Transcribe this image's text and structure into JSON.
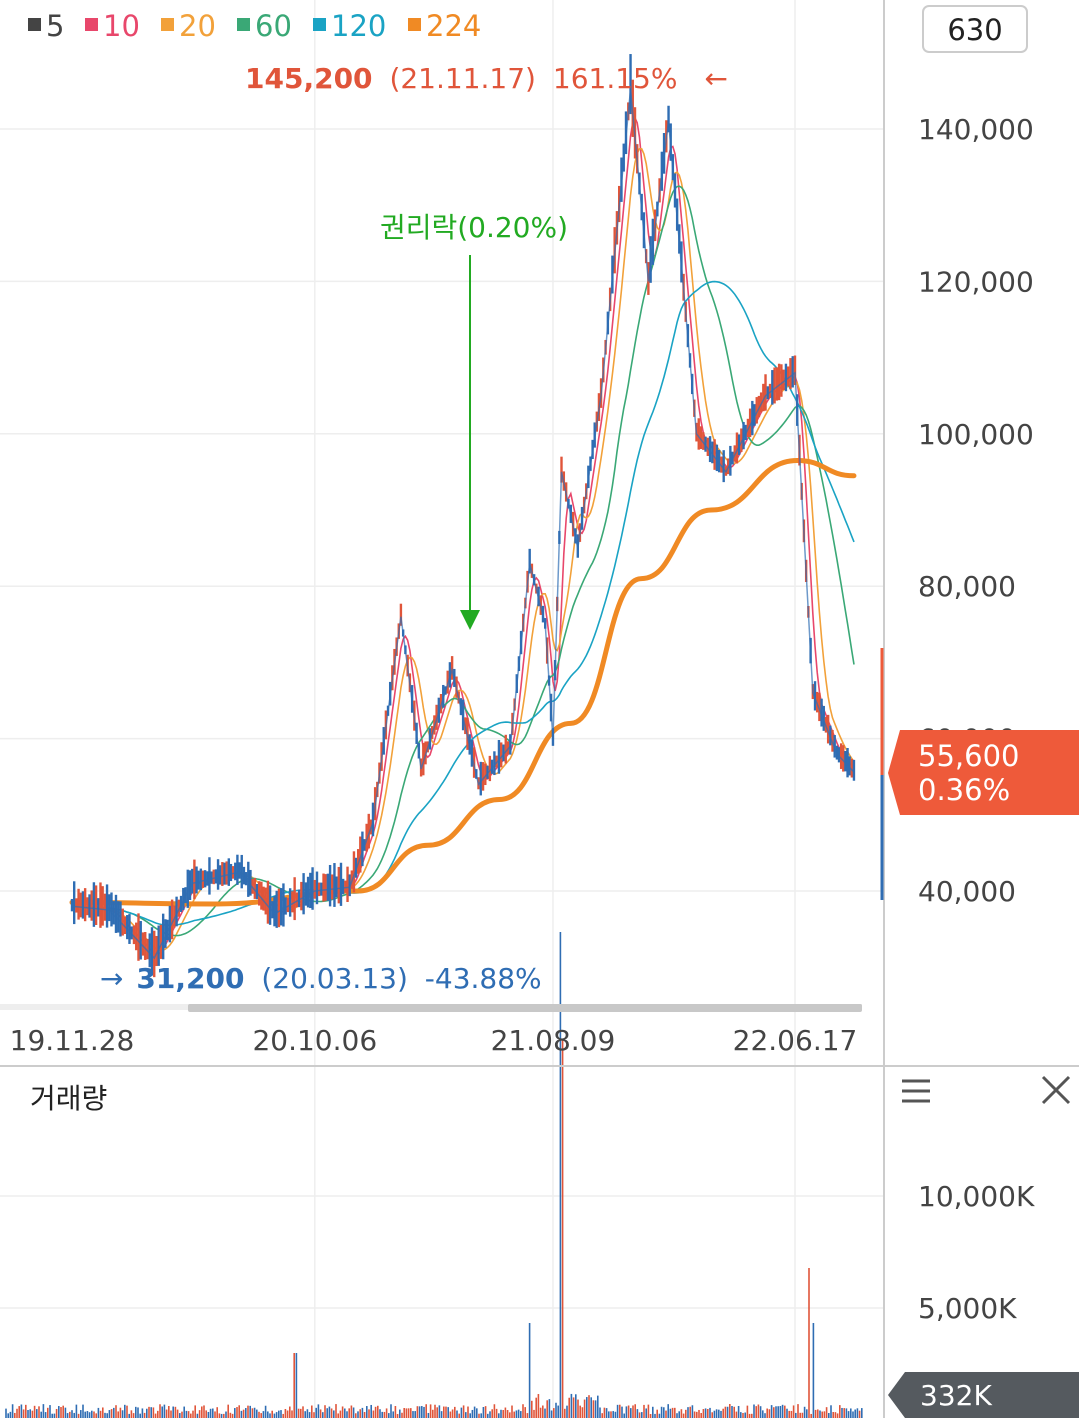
{
  "legend": [
    {
      "label": "5",
      "color": "#444444"
    },
    {
      "label": "10",
      "color": "#e8476b"
    },
    {
      "label": "20",
      "color": "#f2a13a"
    },
    {
      "label": "60",
      "color": "#3aa876"
    },
    {
      "label": "120",
      "color": "#1aa3c4"
    },
    {
      "label": "224",
      "color": "#f08a24"
    }
  ],
  "period_box": "630",
  "price_axis_labels": [
    "140,000",
    "120,000",
    "100,000",
    "80,000",
    "60,000",
    "40,000"
  ],
  "date_labels": [
    "19.11.28",
    "20.10.06",
    "21.08.09",
    "22.06.17"
  ],
  "high_annotation": {
    "price": "145,200",
    "date": "(21.11.17)",
    "pct": "161.15%",
    "arrow": "←",
    "color": "#e0553a"
  },
  "low_annotation": {
    "arrow": "→",
    "price": "31,200",
    "date": "(20.03.13)",
    "pct": "-43.88%",
    "color": "#2f6db3"
  },
  "event_annotation": {
    "label": "권리락(0.20%)",
    "color": "#22aa22"
  },
  "current_badge": {
    "price": "55,600",
    "pct": "0.36%",
    "color": "#ee5a3a"
  },
  "volume_panel": {
    "title": "거래량",
    "axis_labels": [
      "10,000K",
      "5,000K"
    ],
    "current_badge": "332K",
    "menu_icon": "menu-icon",
    "close_icon": "close-icon"
  },
  "chart_data": {
    "type": "line",
    "y_axis": {
      "min": 26000,
      "max": 150000,
      "unit": "KRW"
    },
    "series": [
      {
        "name": "price",
        "points": [
          {
            "date": "2019-11-28",
            "close": 38000
          },
          {
            "date": "2020-01-15",
            "close": 37500
          },
          {
            "date": "2020-03-13",
            "close": 31200
          },
          {
            "date": "2020-05-01",
            "close": 41000
          },
          {
            "date": "2020-07-01",
            "close": 42500
          },
          {
            "date": "2020-08-15",
            "close": 37000
          },
          {
            "date": "2020-10-06",
            "close": 40000
          },
          {
            "date": "2020-11-20",
            "close": 40500
          },
          {
            "date": "2020-12-20",
            "close": 49000
          },
          {
            "date": "2021-01-25",
            "close": 76000
          },
          {
            "date": "2021-02-20",
            "close": 56000
          },
          {
            "date": "2021-04-01",
            "close": 69000
          },
          {
            "date": "2021-05-05",
            "close": 54000
          },
          {
            "date": "2021-06-15",
            "close": 59000
          },
          {
            "date": "2021-07-10",
            "close": 83000
          },
          {
            "date": "2021-07-30",
            "close": 75000
          },
          {
            "date": "2021-08-09",
            "close": 60000
          },
          {
            "date": "2021-08-20",
            "close": 95000
          },
          {
            "date": "2021-09-10",
            "close": 85000
          },
          {
            "date": "2021-10-10",
            "close": 105000
          },
          {
            "date": "2021-11-17",
            "close": 145200
          },
          {
            "date": "2021-12-10",
            "close": 120000
          },
          {
            "date": "2022-01-05",
            "close": 141000
          },
          {
            "date": "2022-02-10",
            "close": 100000
          },
          {
            "date": "2022-03-20",
            "close": 95000
          },
          {
            "date": "2022-05-10",
            "close": 105000
          },
          {
            "date": "2022-06-17",
            "close": 108000
          },
          {
            "date": "2022-07-10",
            "close": 66000
          },
          {
            "date": "2022-08-10",
            "close": 58000
          },
          {
            "date": "2022-09-01",
            "close": 55600
          }
        ]
      },
      {
        "name": "224",
        "points": [
          {
            "date": "2019-11-28",
            "close": 38500
          },
          {
            "date": "2020-06-01",
            "close": 38300
          },
          {
            "date": "2020-12-01",
            "close": 40000
          },
          {
            "date": "2021-03-01",
            "close": 46000
          },
          {
            "date": "2021-06-01",
            "close": 52000
          },
          {
            "date": "2021-09-01",
            "close": 62000
          },
          {
            "date": "2021-12-01",
            "close": 81000
          },
          {
            "date": "2022-03-01",
            "close": 90000
          },
          {
            "date": "2022-06-20",
            "close": 96500
          },
          {
            "date": "2022-09-01",
            "close": 94500
          }
        ]
      }
    ],
    "grid": true
  }
}
